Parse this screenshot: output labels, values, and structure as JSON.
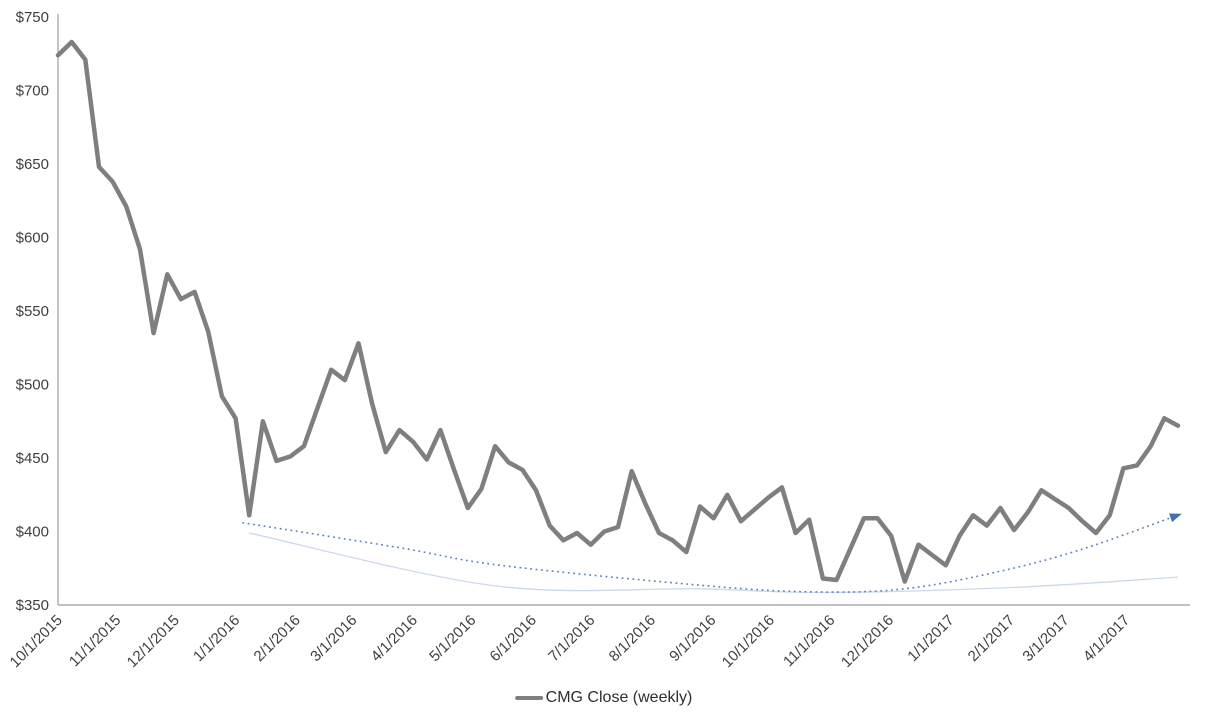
{
  "chart_data": {
    "type": "line",
    "title": "",
    "y_axis": {
      "min": 350,
      "max": 750,
      "step": 50,
      "tick_labels": [
        "$750",
        "$700",
        "$650",
        "$600",
        "$550",
        "$500",
        "$450",
        "$400",
        "$350"
      ]
    },
    "x_axis": {
      "tick_labels": [
        "10/1/2015",
        "11/1/2015",
        "12/1/2015",
        "1/1/2016",
        "2/1/2016",
        "3/1/2016",
        "4/1/2016",
        "5/1/2016",
        "6/1/2016",
        "7/1/2016",
        "8/1/2016",
        "9/1/2016",
        "10/1/2016",
        "11/1/2016",
        "12/1/2016",
        "1/1/2017",
        "2/1/2017",
        "3/1/2017",
        "4/1/2017"
      ],
      "tick_positions": [
        0,
        0.0523,
        0.1045,
        0.1585,
        0.2125,
        0.2631,
        0.3171,
        0.3693,
        0.4233,
        0.4756,
        0.5296,
        0.5836,
        0.6359,
        0.6899,
        0.7422,
        0.7962,
        0.8502,
        0.899,
        0.953
      ]
    },
    "series": [
      {
        "name": "CMG Close (weekly)",
        "color": "#7f7f7f",
        "line_width": 4.5,
        "weekly_values": [
          724,
          733,
          721,
          648,
          638,
          621,
          592,
          535,
          575,
          558,
          563,
          536,
          492,
          477,
          411,
          475,
          448,
          451,
          458,
          484,
          510,
          503,
          528,
          487,
          454,
          469,
          461,
          449,
          469,
          442,
          416,
          429,
          458,
          447,
          442,
          428,
          404,
          394,
          399,
          391,
          400,
          403,
          441,
          419,
          399,
          394,
          386,
          417,
          409,
          425,
          407,
          415,
          423,
          430,
          399,
          408,
          368,
          367,
          388,
          409,
          409,
          397,
          366,
          391,
          384,
          377,
          397,
          411,
          404,
          416,
          401,
          413,
          428,
          422,
          416,
          407,
          399,
          411,
          443,
          445,
          458,
          477,
          472
        ]
      }
    ],
    "trendlines": [
      {
        "name": "dotted-forecast-trendline",
        "style": "dotted",
        "color": "#5b84bd",
        "width": 1.6,
        "arrow": true,
        "arrow_color": "#3f6fb5",
        "anchors": [
          [
            13.5,
            406
          ],
          [
            25,
            389
          ],
          [
            32.4,
            377
          ],
          [
            47,
            363.5
          ],
          [
            55,
            359
          ],
          [
            62,
            361
          ],
          [
            69,
            373
          ],
          [
            75,
            388
          ],
          [
            81.8,
            410.5
          ]
        ]
      },
      {
        "name": "faint-solid-trendline",
        "style": "solid",
        "color": "#ccd9ec",
        "width": 1.3,
        "arrow": false,
        "anchors": [
          [
            14,
            399
          ],
          [
            32,
            363
          ],
          [
            47,
            361
          ],
          [
            56,
            358.5
          ],
          [
            70,
            362
          ],
          [
            82,
            369
          ]
        ]
      }
    ],
    "legend": {
      "position": "bottom",
      "label": "CMG Close (weekly)"
    }
  },
  "colors": {
    "axis_line": "#9c9c9c",
    "tick_text": "#3f3f3f",
    "background": "#ffffff"
  }
}
